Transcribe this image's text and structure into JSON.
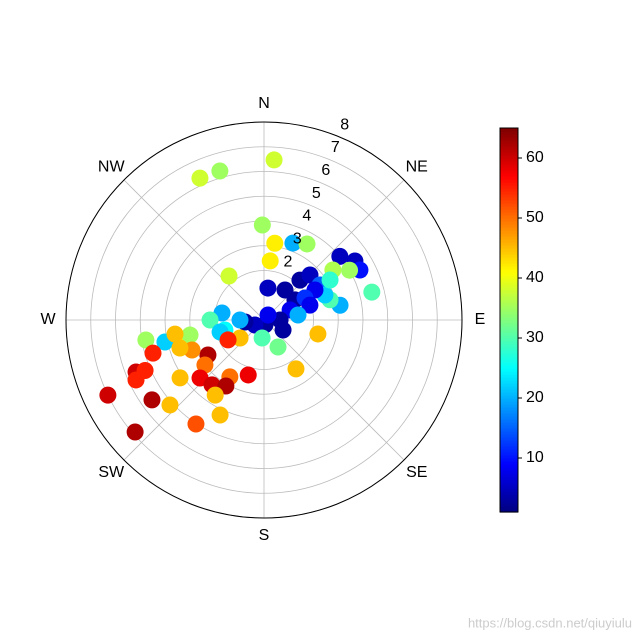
{
  "chart_data": {
    "type": "polar-scatter",
    "theta": [
      3.6,
      335.7,
      343.5,
      359,
      8,
      20.6,
      29.5,
      321.5,
      6,
      50,
      57,
      62.5,
      75.5,
      59.8,
      54,
      79,
      73,
      104.5,
      146.8,
      152.6,
      7,
      35,
      42,
      45.6,
      57,
      69,
      90,
      117.8,
      58,
      67.7,
      59.5,
      61.8,
      58.8,
      72,
      81.6,
      169,
      241,
      264,
      270,
      38.7,
      279.5,
      270,
      255.6,
      254.7,
      233,
      186,
      256.6,
      258.5,
      257.5,
      260.4,
      253.4,
      238,
      241,
      232.7,
      196,
      211,
      227.8,
      218.7,
      210,
      213,
      235.4,
      247.9,
      244.9,
      247,
      244.3,
      234.5,
      227.9,
      213.2,
      204.8,
      229,
      247.4,
      251.6,
      261
    ],
    "r": [
      6.48,
      6.29,
      6.28,
      3.84,
      3.13,
      3.32,
      3.53,
      2.27,
      2.4,
      4.0,
      4.38,
      4.37,
      4.5,
      4.0,
      3.44,
      3.13,
      2.79,
      2.25,
      2.36,
      1.23,
      1.3,
      1.48,
      2.17,
      2.6,
      1.49,
      1.13,
      0.65,
      0.87,
      2.67,
      2.66,
      2.39,
      1.88,
      3.12,
      1.95,
      1.39,
      0.2,
      0.42,
      0.77,
      0.97,
      0.26,
      1.72,
      2.18,
      1.63,
      1.84,
      1.21,
      0.73,
      3.49,
      3.05,
      4.1,
      4.84,
      4.68,
      2.67,
      1.66,
      3.0,
      2.31,
      2.68,
      3.49,
      3.36,
      3.08,
      3.62,
      4.12,
      5.58,
      5.71,
      5.22,
      7.0,
      5.56,
      5.12,
      5.02,
      4.23,
      6.9,
      3.15,
      3.58,
      3.64
    ],
    "c": [
      38,
      38,
      35,
      35,
      42,
      20,
      35,
      38,
      42,
      5,
      5,
      10,
      30,
      35,
      36,
      20,
      30,
      45,
      45,
      32,
      5,
      3,
      3,
      5,
      3,
      8,
      3,
      3,
      15,
      22,
      8,
      12,
      28,
      8,
      20,
      3,
      5,
      3,
      20,
      8,
      20,
      30,
      25,
      22,
      45,
      30,
      42,
      35,
      22,
      35,
      55,
      62,
      55,
      50,
      58,
      50,
      58,
      60,
      62,
      45,
      45,
      60,
      55,
      55,
      60,
      62,
      45,
      52,
      45,
      62,
      48,
      45,
      45
    ],
    "rlim": [
      0,
      8
    ],
    "rticks": [
      2,
      3,
      4,
      5,
      6,
      7,
      8
    ],
    "thetaticks": [
      {
        "value": 0,
        "label": "N"
      },
      {
        "value": 45,
        "label": "NE"
      },
      {
        "value": 90,
        "label": "E"
      },
      {
        "value": 135,
        "label": "SE"
      },
      {
        "value": 180,
        "label": "S"
      },
      {
        "value": 225,
        "label": "SW"
      },
      {
        "value": 270,
        "label": "W"
      },
      {
        "value": 315,
        "label": "NW"
      }
    ],
    "cmap": "jet",
    "clim": [
      1,
      65
    ],
    "cticks": [
      10,
      20,
      30,
      40,
      50,
      60
    ],
    "grid": true,
    "watermark": "https://blog.csdn.net/qiuyiulu"
  }
}
